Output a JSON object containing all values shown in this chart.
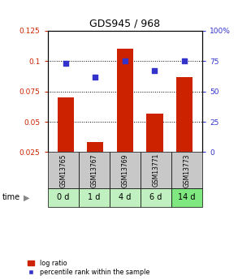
{
  "title": "GDS945 / 968",
  "categories": [
    "GSM13765",
    "GSM13767",
    "GSM13769",
    "GSM13771",
    "GSM13773"
  ],
  "time_labels": [
    "0 d",
    "1 d",
    "4 d",
    "6 d",
    "14 d"
  ],
  "log_ratio": [
    0.07,
    0.033,
    0.11,
    0.057,
    0.087
  ],
  "percentile_rank": [
    73,
    62,
    75,
    67,
    75
  ],
  "bar_color": "#cc2200",
  "dot_color": "#3333cc",
  "ylim_left": [
    0.025,
    0.125
  ],
  "ylim_right": [
    0,
    100
  ],
  "yticks_left": [
    0.025,
    0.05,
    0.075,
    0.1,
    0.125
  ],
  "yticks_right": [
    0,
    25,
    50,
    75,
    100
  ],
  "ytick_labels_left": [
    "0.025",
    "0.05",
    "0.075",
    "0.1",
    "0.125"
  ],
  "ytick_labels_right": [
    "0",
    "25",
    "50",
    "75",
    "100%"
  ],
  "hlines": [
    0.05,
    0.075,
    0.1
  ],
  "gsm_bg_color": "#c8c8c8",
  "time_bg_colors": [
    "#c0f0c0",
    "#c0f0c0",
    "#c0f0c0",
    "#c0f0c0",
    "#80e880"
  ],
  "legend_bar_label": "log ratio",
  "legend_dot_label": "percentile rank within the sample",
  "bar_bottom": 0.025
}
